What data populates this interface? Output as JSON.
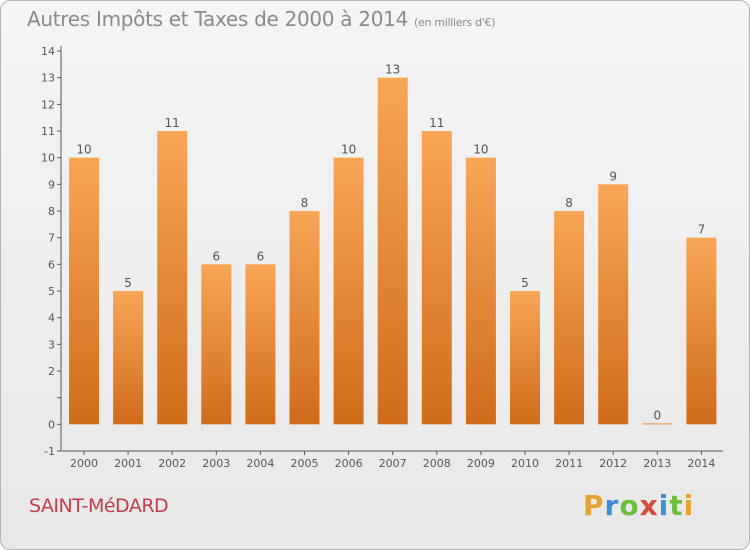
{
  "header": {
    "title": "Autres Impôts et Taxes de 2000 à 2014",
    "unit": "(en milliers d'€)"
  },
  "footer": {
    "city": "SAINT-MéDARD",
    "brand": "Proxiti"
  },
  "colors": {
    "bar_light": "#f8a656",
    "bar_dark": "#d06c1a",
    "axis": "#555555",
    "label": "#555555",
    "city": "#c33c4a"
  },
  "chart_data": {
    "type": "bar",
    "title": "Autres Impôts et Taxes de 2000 à 2014",
    "subtitle": "(en milliers d'€)",
    "xlabel": "",
    "ylabel": "",
    "categories": [
      "2000",
      "2001",
      "2002",
      "2003",
      "2004",
      "2005",
      "2006",
      "2007",
      "2008",
      "2009",
      "2010",
      "2011",
      "2012",
      "2013",
      "2014"
    ],
    "values": [
      10,
      5,
      11,
      6,
      6,
      8,
      10,
      13,
      11,
      10,
      5,
      8,
      9,
      0,
      7
    ],
    "ylim": [
      -1,
      14
    ],
    "yticks": [
      "-1",
      "0",
      "",
      "2",
      "3",
      "4",
      "5",
      "6",
      "7",
      "8",
      "9",
      "10",
      "11",
      "12",
      "13",
      "14"
    ],
    "grid": false,
    "legend": "none"
  }
}
